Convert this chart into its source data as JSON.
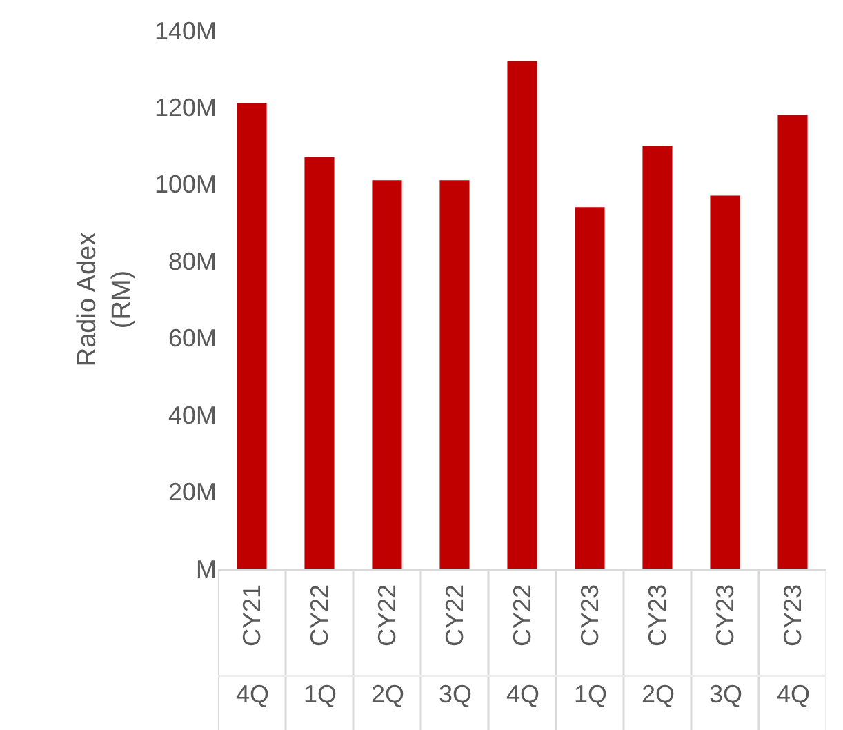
{
  "chart_data": {
    "type": "bar",
    "ylabel": "Radio Adex\n(RM)",
    "categories": [
      "CY21\n4Q",
      "CY22\n1Q",
      "CY22\n2Q",
      "CY22\n3Q",
      "CY22\n4Q",
      "CY23\n1Q",
      "CY23\n2Q",
      "CY23\n3Q",
      "CY23\n4Q"
    ],
    "values": [
      121000000,
      107000000,
      101000000,
      101000000,
      132000000,
      94000000,
      110000000,
      97000000,
      118000000
    ],
    "color": "#c00000",
    "ylim": [
      0,
      140000000
    ],
    "yticks": [
      {
        "value": 0,
        "label": "M"
      },
      {
        "value": 20000000,
        "label": "20M"
      },
      {
        "value": 40000000,
        "label": "40M"
      },
      {
        "value": 60000000,
        "label": "60M"
      },
      {
        "value": 80000000,
        "label": "80M"
      },
      {
        "value": 100000000,
        "label": "100M"
      },
      {
        "value": 120000000,
        "label": "120M"
      },
      {
        "value": 140000000,
        "label": "140M"
      }
    ],
    "grid": false
  }
}
